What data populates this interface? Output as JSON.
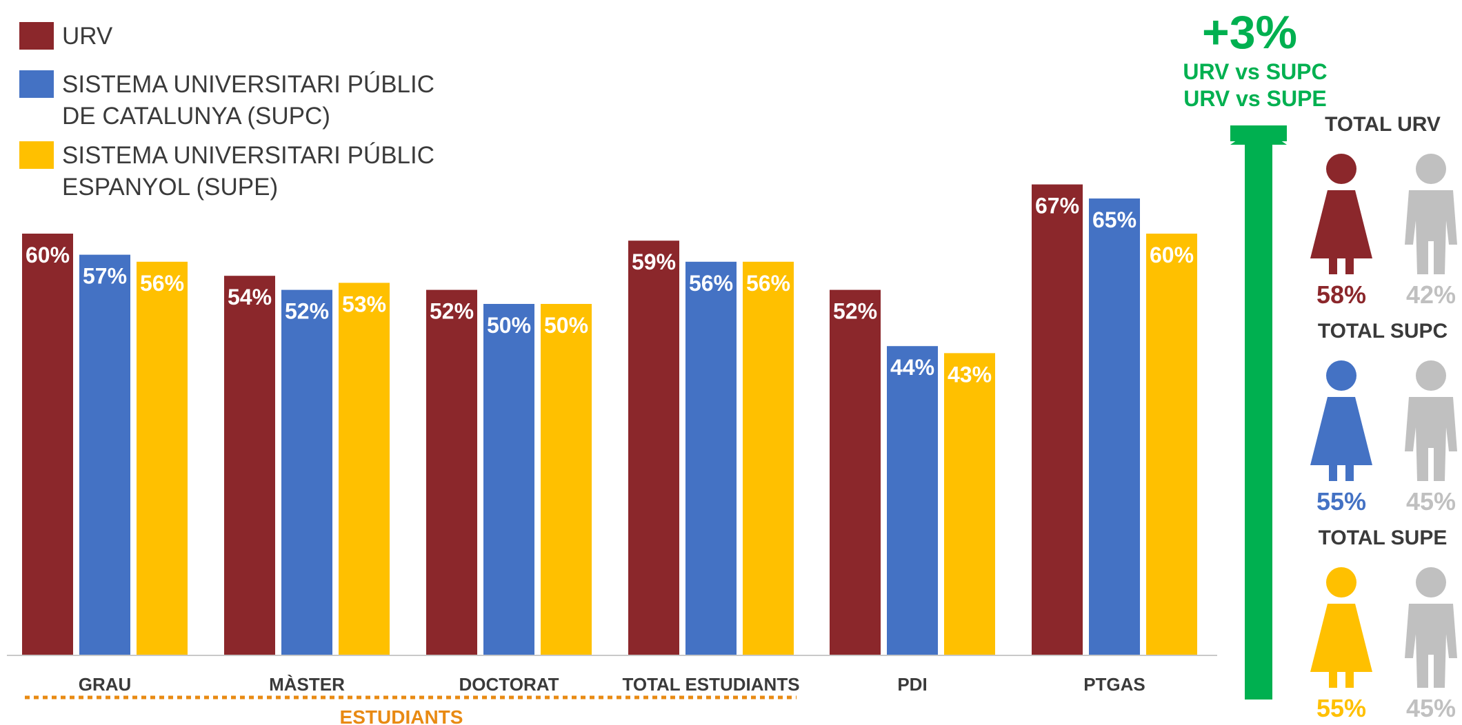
{
  "colors": {
    "urv": "#8b272b",
    "supc": "#4472c4",
    "supe": "#ffc000",
    "grey": "#c0c0c0",
    "green": "#00b050",
    "estudiants": "#e88a13"
  },
  "legend": [
    {
      "lines": [
        "URV"
      ],
      "color": "#8b272b"
    },
    {
      "lines": [
        "SISTEMA UNIVERSITARI PÚBLIC",
        "DE CATALUNYA (SUPC)"
      ],
      "color": "#4472c4"
    },
    {
      "lines": [
        "SISTEMA UNIVERSITARI PÚBLIC",
        "ESPANYOL (SUPE)"
      ],
      "color": "#ffc000"
    }
  ],
  "chart_data": {
    "type": "bar",
    "categories": [
      "GRAU",
      "MÀSTER",
      "DOCTORAT",
      "TOTAL ESTUDIANTS",
      "PDI",
      "PTGAS"
    ],
    "series": [
      {
        "name": "URV",
        "values": [
          60,
          54,
          52,
          59,
          52,
          67
        ],
        "labels": [
          "60%",
          "54%",
          "52%",
          "59%",
          "52%",
          "67%"
        ]
      },
      {
        "name": "SISTEMA UNIVERSITARI PÚBLIC DE CATALUNYA (SUPC)",
        "values": [
          57,
          52,
          50,
          56,
          44,
          65
        ],
        "labels": [
          "57%",
          "52%",
          "50%",
          "56%",
          "44%",
          "65%"
        ]
      },
      {
        "name": "SISTEMA UNIVERSITARI PÚBLIC ESPANYOL (SUPE)",
        "values": [
          56,
          53,
          50,
          56,
          43,
          60
        ],
        "labels": [
          "56%",
          "53%",
          "50%",
          "56%",
          "43%",
          "60%"
        ]
      }
    ],
    "group_label": "ESTUDIANTS",
    "ylim": [
      0,
      67
    ],
    "grid": false,
    "legend_position": "top-left"
  },
  "callout": {
    "big": "+3%",
    "line1": "URV vs SUPC",
    "line2": "URV vs SUPE"
  },
  "totals": [
    {
      "title": "TOTAL URV",
      "women": 58,
      "men": 42,
      "women_label": "58%",
      "men_label": "42%",
      "color": "#8b272b"
    },
    {
      "title": "TOTAL SUPC",
      "women": 55,
      "men": 45,
      "women_label": "55%",
      "men_label": "45%",
      "color": "#4472c4"
    },
    {
      "title": "TOTAL SUPE",
      "women": 55,
      "men": 45,
      "women_label": "55%",
      "men_label": "45%",
      "color": "#ffc000"
    }
  ]
}
